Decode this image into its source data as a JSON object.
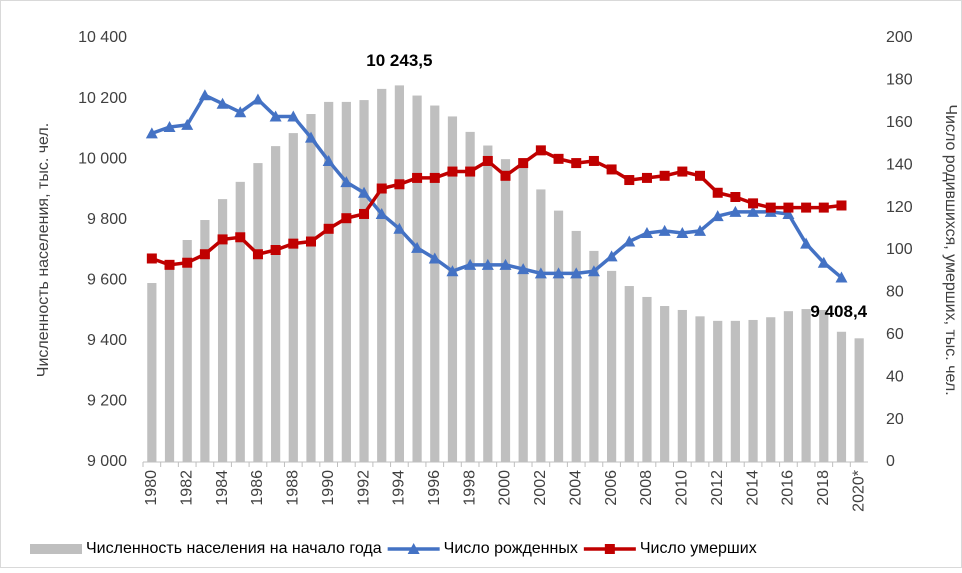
{
  "chart_data": {
    "type": "bar-line",
    "y_label": "Численность населения, тыс. чел.",
    "y2_label": "Число родившихся, умерших, тыс. чел.",
    "categories": [
      "1980",
      null,
      "1982",
      null,
      "1984",
      null,
      "1986",
      null,
      "1988",
      null,
      "1990",
      null,
      "1992",
      null,
      "1994",
      null,
      "1996",
      null,
      "1998",
      null,
      "2000",
      null,
      "2002",
      null,
      "2004",
      null,
      "2006",
      null,
      "2008",
      null,
      "2010",
      null,
      "2012",
      null,
      "2014",
      null,
      "2016",
      null,
      "2018",
      null,
      "2020*"
    ],
    "series": [
      {
        "name": "Численность населения на начало года",
        "type": "bar",
        "color": "#bfbfbf",
        "values": [
          9591,
          9660,
          9733,
          9799,
          9868,
          9925,
          9987,
          10043,
          10086,
          10149,
          10189,
          10189,
          10195,
          10232,
          10243.5,
          10210,
          10177,
          10141,
          10090,
          10045,
          10000,
          9990,
          9900,
          9830,
          9763,
          9697,
          9631,
          9581,
          9545,
          9515,
          9502,
          9481,
          9466,
          9466,
          9469,
          9478,
          9498,
          9505,
          9502,
          9430,
          9408.4
        ],
        "value_labels": [
          null,
          null,
          null,
          null,
          null,
          null,
          null,
          null,
          null,
          null,
          null,
          null,
          null,
          null,
          "10 243,5",
          null,
          null,
          null,
          null,
          null,
          null,
          null,
          null,
          null,
          null,
          null,
          null,
          null,
          null,
          null,
          null,
          null,
          null,
          null,
          null,
          null,
          null,
          null,
          null,
          null,
          "9 408,4"
        ]
      },
      {
        "name": "Число рожденных",
        "type": "line",
        "marker": "triangle",
        "axis": "y2",
        "color": "#4472c4",
        "values": [
          155,
          158,
          159,
          173,
          169,
          165,
          171,
          163,
          163,
          153,
          142,
          132,
          127,
          117,
          110,
          101,
          96,
          90,
          93,
          93,
          93,
          91,
          89,
          89,
          89,
          90,
          97,
          104,
          108,
          109,
          108,
          109,
          116,
          118,
          118,
          118,
          117,
          103,
          94,
          87,
          null
        ]
      },
      {
        "name": "Число умерших",
        "type": "line",
        "marker": "square",
        "axis": "y2",
        "color": "#c00000",
        "values": [
          96,
          93,
          94,
          98,
          105,
          106,
          98,
          100,
          103,
          104,
          110,
          115,
          117,
          129,
          131,
          134,
          134,
          137,
          137,
          142,
          135,
          141,
          147,
          143,
          141,
          142,
          138,
          133,
          134,
          135,
          137,
          135,
          127,
          125,
          122,
          120,
          120,
          120,
          120,
          121,
          null
        ]
      }
    ],
    "ylim": [
      9000,
      10400
    ],
    "yticks": [
      {
        "value": 9000,
        "label": "9 000"
      },
      {
        "value": 9200,
        "label": "9 200"
      },
      {
        "value": 9400,
        "label": "9 400"
      },
      {
        "value": 9600,
        "label": "9 600"
      },
      {
        "value": 9800,
        "label": "9 800"
      },
      {
        "value": 10000,
        "label": "10 000"
      },
      {
        "value": 10200,
        "label": "10 200"
      },
      {
        "value": 10400,
        "label": "10 400"
      }
    ],
    "y2lim": [
      0,
      200
    ],
    "y2ticks": [
      0,
      20,
      40,
      60,
      80,
      100,
      120,
      140,
      160,
      180,
      200
    ],
    "legend": "bottom"
  }
}
